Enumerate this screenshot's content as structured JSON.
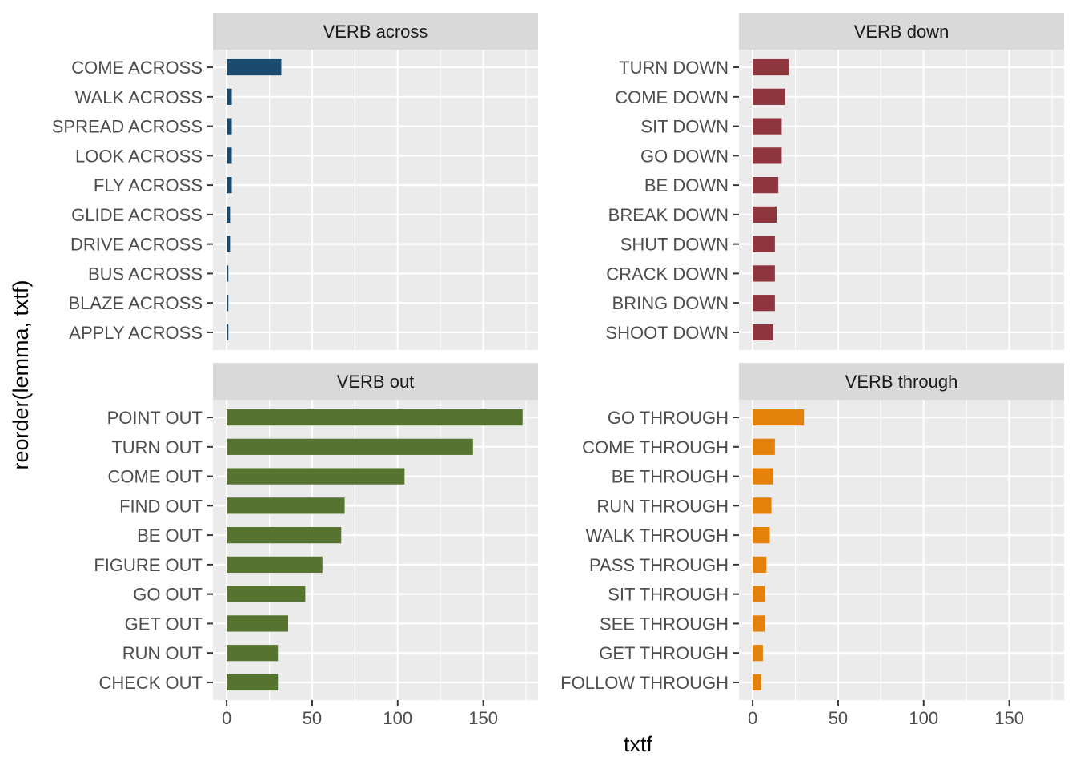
{
  "chart_data": {
    "type": "bar",
    "orientation": "horizontal",
    "layout": "facet_wrap 2x2",
    "xlabel": "txtf",
    "ylabel": "reorder(lemma, txtf)",
    "xlim": [
      -8,
      182
    ],
    "x_ticks": [
      0,
      50,
      100,
      150
    ],
    "grid": true,
    "legend": "none",
    "panels": [
      {
        "title": "VERB across",
        "color": "#1B4A6F",
        "categories": [
          "COME ACROSS",
          "WALK ACROSS",
          "SPREAD ACROSS",
          "LOOK ACROSS",
          "FLY ACROSS",
          "GLIDE ACROSS",
          "DRIVE ACROSS",
          "BUS ACROSS",
          "BLAZE ACROSS",
          "APPLY ACROSS"
        ],
        "values": [
          32,
          3,
          3,
          3,
          3,
          2,
          2,
          1,
          1,
          1
        ]
      },
      {
        "title": "VERB down",
        "color": "#8F353D",
        "categories": [
          "TURN DOWN",
          "COME DOWN",
          "SIT DOWN",
          "GO DOWN",
          "BE DOWN",
          "BREAK DOWN",
          "SHUT DOWN",
          "CRACK DOWN",
          "BRING DOWN",
          "SHOOT DOWN"
        ],
        "values": [
          21,
          19,
          17,
          17,
          15,
          14,
          13,
          13,
          13,
          12
        ]
      },
      {
        "title": "VERB out",
        "color": "#56742F",
        "categories": [
          "POINT OUT",
          "TURN OUT",
          "COME OUT",
          "FIND OUT",
          "BE OUT",
          "FIGURE OUT",
          "GO OUT",
          "GET OUT",
          "RUN OUT",
          "CHECK OUT"
        ],
        "values": [
          173,
          144,
          104,
          69,
          67,
          56,
          46,
          36,
          30,
          30
        ]
      },
      {
        "title": "VERB through",
        "color": "#E3810B",
        "categories": [
          "GO THROUGH",
          "COME THROUGH",
          "BE THROUGH",
          "RUN THROUGH",
          "WALK THROUGH",
          "PASS THROUGH",
          "SIT THROUGH",
          "SEE THROUGH",
          "GET THROUGH",
          "FOLLOW THROUGH"
        ],
        "values": [
          30,
          13,
          12,
          11,
          10,
          8,
          7,
          7,
          6,
          5
        ]
      }
    ]
  }
}
